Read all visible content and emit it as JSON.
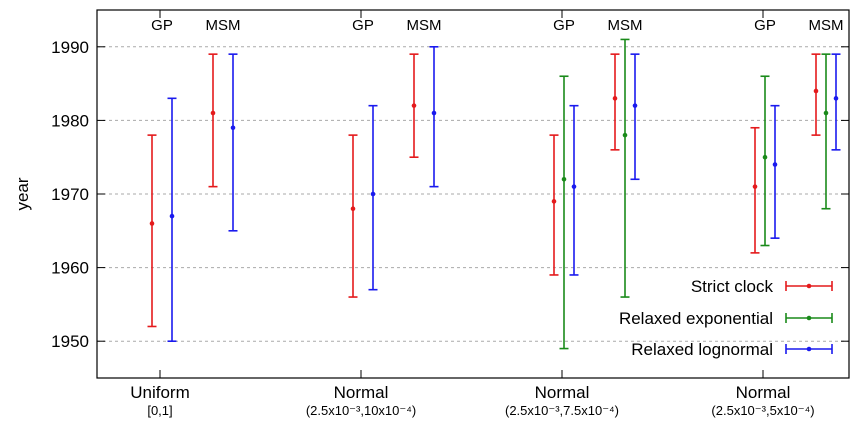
{
  "chart_data": {
    "type": "errorbar",
    "ylabel": "year",
    "ylim": [
      1945,
      1995
    ],
    "yticks": [
      "1950",
      "1960",
      "1970",
      "1980",
      "1990"
    ],
    "grid": "horizontal dashed",
    "legend_position": "bottom-right",
    "groups": [
      {
        "label": "Uniform",
        "sublabel": "[0,1]"
      },
      {
        "label": "Normal",
        "sublabel": "(2.5x10⁻³,10x10⁻⁴)"
      },
      {
        "label": "Normal",
        "sublabel": "(2.5x10⁻³,7.5x10⁻⁴)"
      },
      {
        "label": "Normal",
        "sublabel": "(2.5x10⁻³,5x10⁻⁴)"
      }
    ],
    "methods": [
      "GP",
      "MSM"
    ],
    "series": [
      {
        "name": "Strict clock",
        "color": "#e41a1c",
        "points": [
          {
            "group": 0,
            "method": "GP",
            "mean": 1966,
            "low": 1952,
            "high": 1978
          },
          {
            "group": 0,
            "method": "MSM",
            "mean": 1981,
            "low": 1971,
            "high": 1989
          },
          {
            "group": 1,
            "method": "GP",
            "mean": 1968,
            "low": 1956,
            "high": 1978
          },
          {
            "group": 1,
            "method": "MSM",
            "mean": 1982,
            "low": 1975,
            "high": 1989
          },
          {
            "group": 2,
            "method": "GP",
            "mean": 1969,
            "low": 1959,
            "high": 1978
          },
          {
            "group": 2,
            "method": "MSM",
            "mean": 1983,
            "low": 1976,
            "high": 1989
          },
          {
            "group": 3,
            "method": "GP",
            "mean": 1971,
            "low": 1962,
            "high": 1979
          },
          {
            "group": 3,
            "method": "MSM",
            "mean": 1984,
            "low": 1978,
            "high": 1989
          }
        ]
      },
      {
        "name": "Relaxed exponential",
        "color": "#1a8a1a",
        "points": [
          {
            "group": 2,
            "method": "GP",
            "mean": 1972,
            "low": 1949,
            "high": 1986
          },
          {
            "group": 2,
            "method": "MSM",
            "mean": 1978,
            "low": 1956,
            "high": 1991
          },
          {
            "group": 3,
            "method": "GP",
            "mean": 1975,
            "low": 1963,
            "high": 1986
          },
          {
            "group": 3,
            "method": "MSM",
            "mean": 1981,
            "low": 1968,
            "high": 1989
          }
        ]
      },
      {
        "name": "Relaxed lognormal",
        "color": "#1a1aee",
        "points": [
          {
            "group": 0,
            "method": "GP",
            "mean": 1967,
            "low": 1950,
            "high": 1983
          },
          {
            "group": 0,
            "method": "MSM",
            "mean": 1979,
            "low": 1965,
            "high": 1989
          },
          {
            "group": 1,
            "method": "GP",
            "mean": 1970,
            "low": 1957,
            "high": 1982
          },
          {
            "group": 1,
            "method": "MSM",
            "mean": 1981,
            "low": 1971,
            "high": 1990
          },
          {
            "group": 2,
            "method": "GP",
            "mean": 1971,
            "low": 1959,
            "high": 1982
          },
          {
            "group": 2,
            "method": "MSM",
            "mean": 1982,
            "low": 1972,
            "high": 1989
          },
          {
            "group": 3,
            "method": "GP",
            "mean": 1974,
            "low": 1964,
            "high": 1982
          },
          {
            "group": 3,
            "method": "MSM",
            "mean": 1983,
            "low": 1976,
            "high": 1989
          }
        ]
      }
    ]
  }
}
